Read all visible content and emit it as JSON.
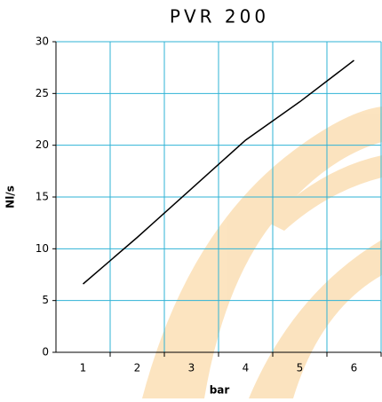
{
  "chart_data": {
    "type": "line",
    "title": "PVR 200",
    "x_label": "bar",
    "y_label": "Nl/s",
    "categories": [
      "1",
      "2",
      "3",
      "4",
      "5",
      "6"
    ],
    "series": [
      {
        "name": "PVR 200",
        "color": "#000000",
        "values": [
          6.6,
          11.1,
          15.8,
          20.5,
          24.2,
          28.2
        ]
      }
    ],
    "ylim": [
      0,
      30
    ],
    "yticks": [
      0,
      5,
      10,
      15,
      20,
      25,
      30
    ],
    "grid": true
  }
}
